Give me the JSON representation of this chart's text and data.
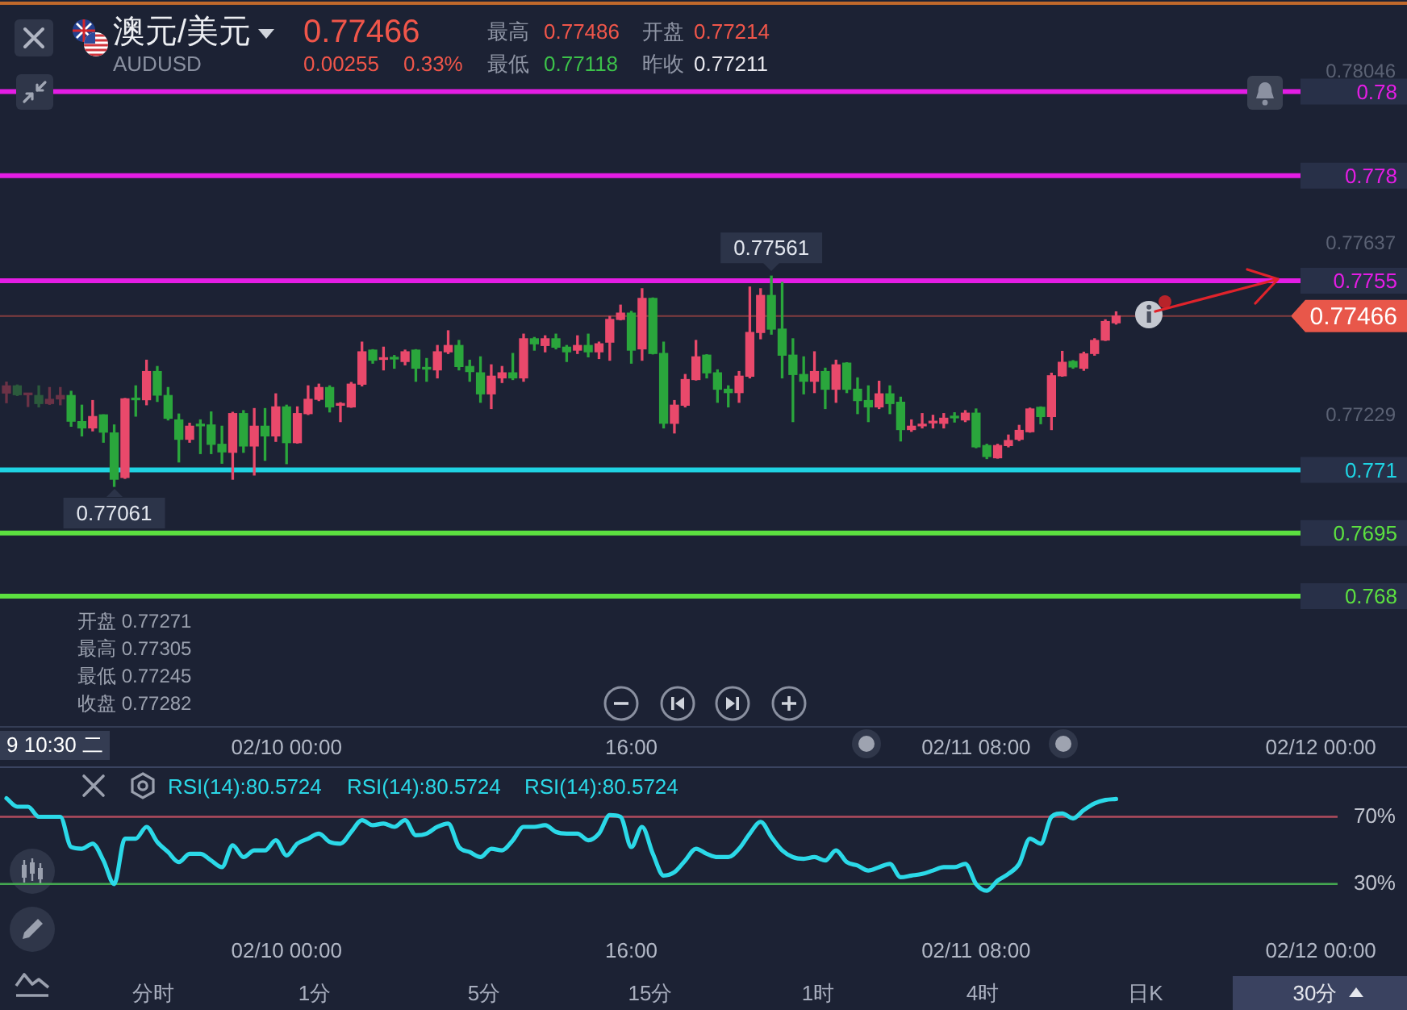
{
  "chart_data": [
    {
      "type": "candlestick",
      "title": "澳元/美元",
      "subtitle": "AUDUSD",
      "x": [
        "--02-09T11:00",
        "--02-09T11:30",
        "--02-09T12:00",
        "--02-09T12:30",
        "--02-09T13:00",
        "--02-09T13:30",
        "--02-09T14:00",
        "--02-09T14:30",
        "--02-09T15:00",
        "--02-09T15:30",
        "--02-09T16:00",
        "--02-09T16:30",
        "--02-09T17:00",
        "--02-09T17:30",
        "--02-09T18:00",
        "--02-09T18:30",
        "--02-09T19:00",
        "--02-09T19:30",
        "--02-09T20:00",
        "--02-09T20:30",
        "--02-09T21:00",
        "--02-09T21:30",
        "--02-09T22:00",
        "--02-09T22:30",
        "--02-09T23:00",
        "--02-09T23:30",
        "--02-10T00:00",
        "--02-10T00:30",
        "--02-10T01:00",
        "--02-10T01:30",
        "--02-10T02:00",
        "--02-10T02:30",
        "--02-10T03:00",
        "--02-10T03:30",
        "--02-10T04:00",
        "--02-10T04:30",
        "--02-10T05:00",
        "--02-10T05:30",
        "--02-10T06:00",
        "--02-10T06:30",
        "--02-10T07:00",
        "--02-10T07:30",
        "--02-10T08:00",
        "--02-10T08:30",
        "--02-10T09:00",
        "--02-10T09:30",
        "--02-10T10:00",
        "--02-10T10:30",
        "--02-10T11:00",
        "--02-10T11:30",
        "--02-10T12:00",
        "--02-10T12:30",
        "--02-10T13:00",
        "--02-10T13:30",
        "--02-10T14:00",
        "--02-10T14:30",
        "--02-10T15:00",
        "--02-10T15:30",
        "--02-10T16:00",
        "--02-10T16:30",
        "--02-10T17:00",
        "--02-10T17:30",
        "--02-10T18:00",
        "--02-10T18:30",
        "--02-10T19:00",
        "--02-10T19:30",
        "--02-10T20:00",
        "--02-10T20:30",
        "--02-10T21:00",
        "--02-10T21:30",
        "--02-10T22:00",
        "--02-10T22:30",
        "--02-10T23:00",
        "--02-10T23:30",
        "--02-11T00:00",
        "--02-11T00:30",
        "--02-11T01:00",
        "--02-11T01:30",
        "--02-11T02:00",
        "--02-11T02:30",
        "--02-11T03:00",
        "--02-11T03:30",
        "--02-11T04:00",
        "--02-11T04:30",
        "--02-11T05:00",
        "--02-11T05:30",
        "--02-11T06:00",
        "--02-11T06:30",
        "--02-11T07:00",
        "--02-11T07:30",
        "--02-11T08:00",
        "--02-11T08:30",
        "--02-11T09:00",
        "--02-11T09:30",
        "--02-11T10:00",
        "--02-11T10:30",
        "--02-11T11:00",
        "--02-11T11:30",
        "--02-11T12:00",
        "--02-11T12:30",
        "--02-11T13:00",
        "--02-11T13:30",
        "--02-11T14:00",
        "--02-11T14:30"
      ],
      "ohlc": [
        [
          0.77283,
          0.77309,
          0.7726,
          0.773
        ],
        [
          0.773,
          0.77302,
          0.77277,
          0.77279
        ],
        [
          0.77279,
          0.77282,
          0.77251,
          0.77281
        ],
        [
          0.77277,
          0.773,
          0.7725,
          0.77258
        ],
        [
          0.77258,
          0.77296,
          0.77256,
          0.77268
        ],
        [
          0.77269,
          0.77296,
          0.77255,
          0.77277
        ],
        [
          0.77277,
          0.77287,
          0.77204,
          0.77216
        ],
        [
          0.77215,
          0.77254,
          0.77181,
          0.772
        ],
        [
          0.772,
          0.77265,
          0.77193,
          0.77227
        ],
        [
          0.77231,
          0.77231,
          0.77166,
          0.7719
        ],
        [
          0.77188,
          0.77207,
          0.77061,
          0.77078
        ],
        [
          0.77082,
          0.7727,
          0.7708,
          0.77269
        ],
        [
          0.77269,
          0.773,
          0.77228,
          0.77267
        ],
        [
          0.77267,
          0.77361,
          0.77255,
          0.77334
        ],
        [
          0.77334,
          0.77346,
          0.77263,
          0.77278
        ],
        [
          0.77277,
          0.77296,
          0.77219,
          0.77223
        ],
        [
          0.77219,
          0.77233,
          0.77119,
          0.77173
        ],
        [
          0.77173,
          0.77211,
          0.77166,
          0.77204
        ],
        [
          0.77207,
          0.77219,
          0.77139,
          0.77205
        ],
        [
          0.77207,
          0.77238,
          0.77139,
          0.77161
        ],
        [
          0.77161,
          0.77204,
          0.77116,
          0.77143
        ],
        [
          0.77142,
          0.77237,
          0.77078,
          0.77234
        ],
        [
          0.77234,
          0.77241,
          0.77142,
          0.77157
        ],
        [
          0.77157,
          0.77246,
          0.77088,
          0.77204
        ],
        [
          0.77204,
          0.77246,
          0.77123,
          0.77181
        ],
        [
          0.77181,
          0.77281,
          0.77168,
          0.7725
        ],
        [
          0.7725,
          0.77254,
          0.77115,
          0.77165
        ],
        [
          0.77165,
          0.7725,
          0.77164,
          0.77234
        ],
        [
          0.77234,
          0.773,
          0.77232,
          0.77268
        ],
        [
          0.77268,
          0.77304,
          0.77265,
          0.77296
        ],
        [
          0.77296,
          0.773,
          0.77238,
          0.7725
        ],
        [
          0.77254,
          0.7726,
          0.77215,
          0.77258
        ],
        [
          0.7725,
          0.77308,
          0.77249,
          0.77304
        ],
        [
          0.77304,
          0.77404,
          0.773,
          0.77381
        ],
        [
          0.77385,
          0.77386,
          0.77354,
          0.77361
        ],
        [
          0.77363,
          0.77392,
          0.77338,
          0.77365
        ],
        [
          0.77367,
          0.77372,
          0.77342,
          0.77364
        ],
        [
          0.77358,
          0.77385,
          0.7735,
          0.77381
        ],
        [
          0.77385,
          0.77386,
          0.77311,
          0.77342
        ],
        [
          0.77342,
          0.77365,
          0.77311,
          0.7734
        ],
        [
          0.77338,
          0.77396,
          0.77319,
          0.77381
        ],
        [
          0.77381,
          0.77431,
          0.77377,
          0.77396
        ],
        [
          0.77396,
          0.77408,
          0.77338,
          0.77346
        ],
        [
          0.77346,
          0.77361,
          0.77311,
          0.77334
        ],
        [
          0.77331,
          0.77369,
          0.77261,
          0.77281
        ],
        [
          0.77281,
          0.7735,
          0.77246,
          0.77323
        ],
        [
          0.77319,
          0.77346,
          0.77308,
          0.77331
        ],
        [
          0.77331,
          0.77377,
          0.77315,
          0.77319
        ],
        [
          0.77319,
          0.77423,
          0.77311,
          0.77412
        ],
        [
          0.77412,
          0.77415,
          0.77385,
          0.774
        ],
        [
          0.77396,
          0.77419,
          0.77381,
          0.77412
        ],
        [
          0.77412,
          0.77423,
          0.77388,
          0.77392
        ],
        [
          0.77392,
          0.77396,
          0.77358,
          0.77381
        ],
        [
          0.77385,
          0.77419,
          0.77377,
          0.77396
        ],
        [
          0.77396,
          0.77423,
          0.77369,
          0.77381
        ],
        [
          0.77381,
          0.77404,
          0.77365,
          0.774
        ],
        [
          0.77404,
          0.77465,
          0.77361,
          0.77458
        ],
        [
          0.77458,
          0.77492,
          0.77457,
          0.77473
        ],
        [
          0.77473,
          0.77477,
          0.77354,
          0.77385
        ],
        [
          0.77388,
          0.77531,
          0.77361,
          0.77508
        ],
        [
          0.77508,
          0.77509,
          0.77376,
          0.77377
        ],
        [
          0.77377,
          0.77404,
          0.772,
          0.77211
        ],
        [
          0.77211,
          0.77265,
          0.77188,
          0.77254
        ],
        [
          0.77254,
          0.77327,
          0.7725,
          0.77315
        ],
        [
          0.77315,
          0.77408,
          0.77314,
          0.77369
        ],
        [
          0.77373,
          0.77374,
          0.77319,
          0.77331
        ],
        [
          0.77331,
          0.77338,
          0.77261,
          0.77292
        ],
        [
          0.77292,
          0.773,
          0.7725,
          0.77284
        ],
        [
          0.77284,
          0.77334,
          0.77261,
          0.77323
        ],
        [
          0.77323,
          0.77535,
          0.77319,
          0.77427
        ],
        [
          0.77427,
          0.77531,
          0.77412,
          0.77515
        ],
        [
          0.77515,
          0.77561,
          0.77423,
          0.77435
        ],
        [
          0.77435,
          0.77546,
          0.77319,
          0.77373
        ],
        [
          0.77373,
          0.77412,
          0.77215,
          0.77327
        ],
        [
          0.77327,
          0.77369,
          0.77281,
          0.77311
        ],
        [
          0.77311,
          0.77381,
          0.77284,
          0.77334
        ],
        [
          0.77334,
          0.77342,
          0.77246,
          0.77292
        ],
        [
          0.77292,
          0.77361,
          0.77261,
          0.7735
        ],
        [
          0.77354,
          0.77355,
          0.77284,
          0.77292
        ],
        [
          0.77292,
          0.77319,
          0.77234,
          0.77265
        ],
        [
          0.77265,
          0.773,
          0.77215,
          0.7725
        ],
        [
          0.7725,
          0.77311,
          0.77246,
          0.77281
        ],
        [
          0.77281,
          0.773,
          0.77234,
          0.77258
        ],
        [
          0.77261,
          0.77273,
          0.77169,
          0.77196
        ],
        [
          0.77196,
          0.77219,
          0.77192,
          0.77204
        ],
        [
          0.77205,
          0.77234,
          0.772,
          0.77207
        ],
        [
          0.77212,
          0.7723,
          0.772,
          0.77215
        ],
        [
          0.77211,
          0.77234,
          0.772,
          0.77223
        ],
        [
          0.77227,
          0.77236,
          0.77214,
          0.77224
        ],
        [
          0.77219,
          0.77241,
          0.77215,
          0.77235
        ],
        [
          0.77235,
          0.77245,
          0.77153,
          0.77155
        ],
        [
          0.77158,
          0.77161,
          0.77127,
          0.77132
        ],
        [
          0.77129,
          0.77161,
          0.77128,
          0.77158
        ],
        [
          0.77158,
          0.77183,
          0.77155,
          0.7717
        ],
        [
          0.77173,
          0.77206,
          0.7717,
          0.77194
        ],
        [
          0.77191,
          0.77247,
          0.7719,
          0.77245
        ],
        [
          0.77249,
          0.7725,
          0.7721,
          0.77227
        ],
        [
          0.77227,
          0.7733,
          0.77196,
          0.77324
        ],
        [
          0.77324,
          0.77382,
          0.77323,
          0.77356
        ],
        [
          0.77358,
          0.7736,
          0.77342,
          0.77345
        ],
        [
          0.77342,
          0.7738,
          0.77337,
          0.77376
        ],
        [
          0.77377,
          0.77412,
          0.77373,
          0.77408
        ],
        [
          0.77409,
          0.77457,
          0.77408,
          0.77453
        ],
        [
          0.7745,
          0.77476,
          0.77447,
          0.77466
        ]
      ],
      "colors": [
        "#6b3246",
        "#2b5a3c",
        "#6b3246",
        "#2b5a3c",
        "#6b3246",
        "#6b3246",
        "#2aa63c",
        "#2aa63c",
        "#e9496b",
        "#2aa63c",
        "#2aa63c",
        "#e9496b",
        "#2aa63c",
        "#e9496b",
        "#2aa63c",
        "#2aa63c",
        "#2aa63c",
        "#e9496b",
        "#2aa63c",
        "#2aa63c",
        "#2aa63c",
        "#e9496b",
        "#2aa63c",
        "#e9496b",
        "#2aa63c",
        "#e9496b",
        "#2aa63c",
        "#e9496b",
        "#e9496b",
        "#e9496b",
        "#2aa63c",
        "#e9496b",
        "#e9496b",
        "#e9496b",
        "#2aa63c",
        "#e9496b",
        "#2aa63c",
        "#e9496b",
        "#2aa63c",
        "#2aa63c",
        "#e9496b",
        "#e9496b",
        "#2aa63c",
        "#2aa63c",
        "#2aa63c",
        "#e9496b",
        "#e9496b",
        "#2aa63c",
        "#e9496b",
        "#2aa63c",
        "#e9496b",
        "#2aa63c",
        "#2aa63c",
        "#e9496b",
        "#2aa63c",
        "#e9496b",
        "#e9496b",
        "#e9496b",
        "#2aa63c",
        "#e9496b",
        "#2aa63c",
        "#2aa63c",
        "#e9496b",
        "#e9496b",
        "#e9496b",
        "#2aa63c",
        "#2aa63c",
        "#2aa63c",
        "#e9496b",
        "#e9496b",
        "#e9496b",
        "#2aa63c",
        "#2aa63c",
        "#2aa63c",
        "#2aa63c",
        "#e9496b",
        "#2aa63c",
        "#e9496b",
        "#2aa63c",
        "#2aa63c",
        "#2aa63c",
        "#e9496b",
        "#2aa63c",
        "#2aa63c",
        "#e9496b",
        "#e9496b",
        "#e9496b",
        "#e9496b",
        "#2aa63c",
        "#e9496b",
        "#2aa63c",
        "#2aa63c",
        "#e9496b",
        "#e9496b",
        "#e9496b",
        "#e9496b",
        "#2aa63c",
        "#e9496b",
        "#e9496b",
        "#2aa63c",
        "#e9496b",
        "#e9496b",
        "#e9496b",
        "#e9496b"
      ],
      "xlim": [
        "--02-09T10:42",
        "--02-12T04:00"
      ],
      "xticks": [
        {
          "value": "--02-10T00:00",
          "label": "02/10 00:00"
        },
        {
          "value": "--02-10T16:00",
          "label": "16:00"
        },
        {
          "value": "--02-11T08:00",
          "label": "02/11 08:00"
        },
        {
          "value": "--02-12T00:00",
          "label": "02/12 00:00"
        }
      ],
      "ylim": [
        0.76491,
        0.7821
      ],
      "yticks": [
        0.78046,
        0.77637,
        0.77229
      ],
      "ref_lines": [
        {
          "axis": "y",
          "value": 0.78,
          "label": "0.78",
          "color": "#e41de4"
        },
        {
          "axis": "y",
          "value": 0.778,
          "label": "0.778",
          "color": "#e41de4"
        },
        {
          "axis": "y",
          "value": 0.7755,
          "label": "0.7755",
          "color": "#e41de4"
        },
        {
          "axis": "y",
          "value": 0.77466,
          "label": "0.77466",
          "color": "#e8574a"
        },
        {
          "axis": "y",
          "value": 0.771,
          "label": "0.771",
          "color": "#1fd3e3"
        },
        {
          "axis": "y",
          "value": 0.7695,
          "label": "0.7695",
          "color": "#5ce040"
        },
        {
          "axis": "y",
          "value": 0.768,
          "label": "0.768",
          "color": "#5ce040"
        }
      ],
      "annotations": [
        "0.77466",
        "0.00255",
        "0.33%",
        "最高",
        "0.77486",
        "开盘",
        "0.77214",
        "最低",
        "0.77118",
        "昨收",
        "0.77211",
        "开盘 0.77271",
        "最高 0.77305",
        "最低 0.77245",
        "收盘 0.77282",
        "9 10:30 二",
        {
          "text": "0.77561",
          "x": "--02-10T22:30",
          "y": 0.77561
        },
        {
          "text": "0.77061",
          "x": "--02-09T16:00",
          "y": 0.77061
        }
      ]
    },
    {
      "type": "line",
      "x": [
        "--02-09T11:00",
        "--02-09T11:30",
        "--02-09T12:00",
        "--02-09T12:30",
        "--02-09T13:00",
        "--02-09T13:30",
        "--02-09T14:00",
        "--02-09T14:30",
        "--02-09T15:00",
        "--02-09T15:30",
        "--02-09T16:00",
        "--02-09T16:30",
        "--02-09T17:00",
        "--02-09T17:30",
        "--02-09T18:00",
        "--02-09T18:30",
        "--02-09T19:00",
        "--02-09T19:30",
        "--02-09T20:00",
        "--02-09T20:30",
        "--02-09T21:00",
        "--02-09T21:30",
        "--02-09T22:00",
        "--02-09T22:30",
        "--02-09T23:00",
        "--02-09T23:30",
        "--02-10T00:00",
        "--02-10T00:30",
        "--02-10T01:00",
        "--02-10T01:30",
        "--02-10T02:00",
        "--02-10T02:30",
        "--02-10T03:00",
        "--02-10T03:30",
        "--02-10T04:00",
        "--02-10T04:30",
        "--02-10T05:00",
        "--02-10T05:30",
        "--02-10T06:00",
        "--02-10T06:30",
        "--02-10T07:00",
        "--02-10T07:30",
        "--02-10T08:00",
        "--02-10T08:30",
        "--02-10T09:00",
        "--02-10T09:30",
        "--02-10T10:00",
        "--02-10T10:30",
        "--02-10T11:00",
        "--02-10T11:30",
        "--02-10T12:00",
        "--02-10T12:30",
        "--02-10T13:00",
        "--02-10T13:30",
        "--02-10T14:00",
        "--02-10T14:30",
        "--02-10T15:00",
        "--02-10T15:30",
        "--02-10T16:00",
        "--02-10T16:30",
        "--02-10T17:00",
        "--02-10T17:30",
        "--02-10T18:00",
        "--02-10T18:30",
        "--02-10T19:00",
        "--02-10T19:30",
        "--02-10T20:00",
        "--02-10T20:30",
        "--02-10T21:00",
        "--02-10T21:30",
        "--02-10T22:00",
        "--02-10T22:30",
        "--02-10T23:00",
        "--02-10T23:30",
        "--02-11T00:00",
        "--02-11T00:30",
        "--02-11T01:00",
        "--02-11T01:30",
        "--02-11T02:00",
        "--02-11T02:30",
        "--02-11T03:00",
        "--02-11T03:30",
        "--02-11T04:00",
        "--02-11T04:30",
        "--02-11T05:00",
        "--02-11T05:30",
        "--02-11T06:00",
        "--02-11T06:30",
        "--02-11T07:00",
        "--02-11T07:30",
        "--02-11T08:00",
        "--02-11T08:30",
        "--02-11T09:00",
        "--02-11T09:30",
        "--02-11T10:00",
        "--02-11T10:30",
        "--02-11T11:00",
        "--02-11T11:30",
        "--02-11T12:00",
        "--02-11T12:30",
        "--02-11T13:00",
        "--02-11T13:30",
        "--02-11T14:00",
        "--02-11T14:30"
      ],
      "series": [
        {
          "name": "RSI(14):80.5724",
          "color": "#2bd9e8",
          "values": [
            81,
            76,
            76,
            70,
            70,
            70,
            52,
            51,
            54,
            44,
            30,
            57,
            57,
            64,
            55,
            49,
            43,
            48,
            48,
            44,
            40,
            53,
            46,
            50,
            50,
            56,
            47,
            54,
            57,
            60,
            55,
            54,
            61,
            68,
            65,
            66,
            64,
            68,
            59,
            60,
            64,
            66,
            52,
            49,
            46,
            51,
            50,
            56,
            64,
            64,
            65,
            61,
            60,
            60,
            56,
            60,
            71,
            70,
            52,
            64,
            48,
            35,
            37,
            44,
            51,
            48,
            46,
            46,
            51,
            60,
            67,
            58,
            50,
            46,
            45,
            46,
            44,
            50,
            43,
            41,
            38,
            40,
            42,
            34,
            35,
            36,
            38,
            40,
            40,
            42,
            30,
            26,
            32,
            36,
            42,
            57,
            54,
            70,
            72,
            69,
            74,
            78,
            80,
            80.5724
          ]
        }
      ],
      "xlim": [
        "--02-09T10:42",
        "--02-12T04:00"
      ],
      "xticks": [
        {
          "value": "--02-10T00:00",
          "label": "02/10 00:00"
        },
        {
          "value": "--02-10T16:00",
          "label": "16:00"
        },
        {
          "value": "--02-11T08:00",
          "label": "02/11 08:00"
        },
        {
          "value": "--02-12T00:00",
          "label": "02/12 00:00"
        }
      ],
      "ylim": [
        -45,
        100
      ],
      "yticks": [
        {
          "value": 70,
          "label": "70%"
        },
        {
          "value": 30,
          "label": "30%"
        }
      ],
      "ref_lines": [
        {
          "axis": "y",
          "value": 70,
          "color": "#b04c5e"
        },
        {
          "axis": "y",
          "value": 30,
          "color": "#44a851"
        }
      ],
      "marker": "none",
      "legend": "top left",
      "annotations": [
        "RSI(14):80.5724",
        "RSI(14):80.5724"
      ]
    },
    {
      "type": "other",
      "annotations": [
        "分时",
        "1分",
        "5分",
        "15分",
        "1时",
        "4时",
        "日K",
        "30分"
      ]
    }
  ]
}
